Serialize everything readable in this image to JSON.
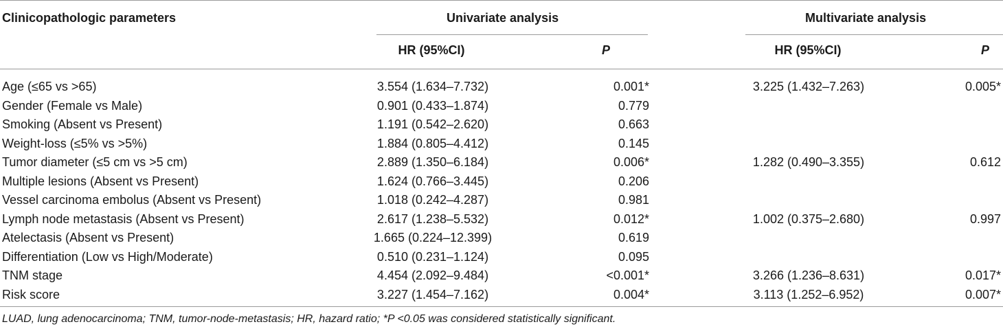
{
  "table": {
    "headers": {
      "param": "Clinicopathologic parameters",
      "univariate": "Univariate analysis",
      "multivariate": "Multivariate analysis",
      "hr": "HR (95%CI)",
      "p": "P"
    },
    "rows": [
      {
        "param": "Age (≤65 vs >65)",
        "uni_hr": "3.554 (1.634–7.732)",
        "uni_p": "0.001*",
        "multi_hr": "3.225 (1.432–7.263)",
        "multi_p": "0.005*"
      },
      {
        "param": "Gender (Female vs Male)",
        "uni_hr": "0.901 (0.433–1.874)",
        "uni_p": "0.779",
        "multi_hr": "",
        "multi_p": ""
      },
      {
        "param": "Smoking (Absent vs Present)",
        "uni_hr": "1.191 (0.542–2.620)",
        "uni_p": "0.663",
        "multi_hr": "",
        "multi_p": ""
      },
      {
        "param": "Weight-loss (≤5% vs >5%)",
        "uni_hr": "1.884 (0.805–4.412)",
        "uni_p": "0.145",
        "multi_hr": "",
        "multi_p": ""
      },
      {
        "param": "Tumor diameter (≤5 cm vs >5 cm)",
        "uni_hr": "2.889 (1.350–6.184)",
        "uni_p": "0.006*",
        "multi_hr": "1.282 (0.490–3.355)",
        "multi_p": "0.612"
      },
      {
        "param": "Multiple lesions (Absent vs Present)",
        "uni_hr": "1.624 (0.766–3.445)",
        "uni_p": "0.206",
        "multi_hr": "",
        "multi_p": ""
      },
      {
        "param": "Vessel carcinoma embolus (Absent vs Present)",
        "uni_hr": "1.018 (0.242–4.287)",
        "uni_p": "0.981",
        "multi_hr": "",
        "multi_p": ""
      },
      {
        "param": "Lymph node metastasis (Absent vs Present)",
        "uni_hr": "2.617 (1.238–5.532)",
        "uni_p": "0.012*",
        "multi_hr": "1.002 (0.375–2.680)",
        "multi_p": "0.997"
      },
      {
        "param": "Atelectasis (Absent vs Present)",
        "uni_hr": "1.665 (0.224–12.399)",
        "uni_p": "0.619",
        "multi_hr": "",
        "multi_p": ""
      },
      {
        "param": "Differentiation (Low vs High/Moderate)",
        "uni_hr": "0.510 (0.231–1.124)",
        "uni_p": "0.095",
        "multi_hr": "",
        "multi_p": ""
      },
      {
        "param": "TNM stage",
        "uni_hr": "4.454 (2.092–9.484)",
        "uni_p": "<0.001*",
        "multi_hr": "3.266 (1.236–8.631)",
        "multi_p": "0.017*"
      },
      {
        "param": "Risk score",
        "uni_hr": "3.227 (1.454–7.162)",
        "uni_p": "0.004*",
        "multi_hr": "3.113 (1.252–6.952)",
        "multi_p": "0.007*"
      }
    ],
    "footnote": "LUAD, lung adenocarcinoma; TNM, tumor-node-metastasis; HR, hazard ratio; *P <0.05 was considered statistically significant."
  }
}
